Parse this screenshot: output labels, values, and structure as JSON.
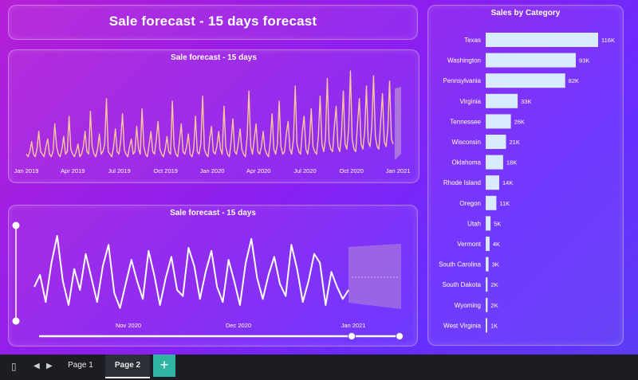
{
  "dashboard_title": "Sale forecast - 15 days forecast",
  "colors": {
    "line1": "#f8c79a",
    "line2": "#ffffff",
    "bar": "#d9ecff",
    "forecast_band": "#b78bd6"
  },
  "footer": {
    "tabs": [
      "Page 1",
      "Page 2"
    ],
    "active_tab": "Page 2",
    "add_label": "+",
    "icons": [
      "phone-layout-icon",
      "prev-page-icon",
      "next-page-icon"
    ]
  },
  "chart_data": [
    {
      "type": "line",
      "title": "Sale forecast - 15 days",
      "x_tick_labels": [
        "Jan 2019",
        "Apr 2019",
        "Jul 2019",
        "Oct 2019",
        "Jan 2020",
        "Apr 2020",
        "Jul 2020",
        "Oct 2020",
        "Jan 2021"
      ],
      "series": [
        {
          "values": [
            3,
            2,
            4,
            8,
            3,
            2,
            5,
            12,
            4,
            3,
            2,
            6,
            9,
            3,
            2,
            4,
            15,
            6,
            3,
            2,
            5,
            10,
            3,
            4,
            18,
            5,
            3,
            2,
            4,
            7,
            2,
            3,
            6,
            12,
            4,
            3,
            20,
            6,
            3,
            2,
            5,
            11,
            3,
            4,
            7,
            25,
            4,
            3,
            2,
            6,
            13,
            4,
            3,
            8,
            19,
            5,
            3,
            2,
            6,
            9,
            3,
            4,
            14,
            5,
            3,
            21,
            6,
            3,
            2,
            7,
            12,
            4,
            3,
            9,
            16,
            5,
            3,
            2,
            5,
            10,
            4,
            3,
            24,
            6,
            3,
            2,
            8,
            15,
            4,
            3,
            6,
            11,
            3,
            2,
            5,
            18,
            4,
            3,
            7,
            26,
            5,
            3,
            2,
            9,
            14,
            4,
            3,
            6,
            12,
            5,
            3,
            22,
            6,
            3,
            2,
            8,
            17,
            4,
            3,
            7,
            13,
            5,
            3,
            2,
            10,
            28,
            6,
            3,
            9,
            15,
            4,
            3,
            6,
            12,
            5,
            3,
            2,
            8,
            19,
            5,
            3,
            7,
            24,
            6,
            3,
            4,
            11,
            16,
            5,
            3,
            9,
            30,
            7,
            4,
            3,
            12,
            18,
            5,
            3,
            8,
            21,
            6,
            4,
            3,
            10,
            26,
            7,
            4,
            9,
            33,
            8,
            5,
            4,
            14,
            22,
            6,
            4,
            11,
            28,
            7,
            5,
            13,
            36,
            9,
            5,
            4,
            15,
            25,
            7,
            5,
            12,
            30,
            8,
            6,
            14,
            34,
            10,
            6,
            5,
            16,
            27,
            8,
            6,
            13,
            32,
            9,
            7
          ]
        }
      ],
      "forecast_band": true
    },
    {
      "type": "line",
      "title": "Sale forecast - 15 days",
      "x_tick_labels": [
        "Nov 2020",
        "Dec 2020",
        "Jan 2021"
      ],
      "series": [
        {
          "values": [
            10,
            14,
            5,
            18,
            27,
            12,
            4,
            16,
            9,
            21,
            13,
            5,
            17,
            24,
            8,
            3,
            11,
            19,
            12,
            6,
            22,
            14,
            4,
            13,
            20,
            9,
            7,
            23,
            17,
            6,
            15,
            22,
            10,
            5,
            19,
            12,
            4,
            18,
            26,
            13,
            6,
            14,
            20,
            11,
            7,
            24,
            16,
            5,
            12,
            21,
            18,
            4,
            15,
            10,
            6,
            9
          ]
        }
      ],
      "forecast_band": true
    },
    {
      "type": "bar",
      "orientation": "horizontal",
      "title": "Sales by Category",
      "categories": [
        "Texas",
        "Washington",
        "Pennsylvania",
        "Virginia",
        "Tennessee",
        "Wisconsin",
        "Oklahoma",
        "Rhode Island",
        "Oregon",
        "Utah",
        "Vermont",
        "South Carolina",
        "South Dakota",
        "Wyoming",
        "West Virginia"
      ],
      "values": [
        116,
        93,
        82,
        33,
        26,
        21,
        18,
        14,
        11,
        5,
        4,
        3,
        2,
        2,
        1
      ],
      "value_labels": [
        "116K",
        "93K",
        "82K",
        "33K",
        "26K",
        "21K",
        "18K",
        "14K",
        "11K",
        "5K",
        "4K",
        "3K",
        "2K",
        "2K",
        "1K"
      ],
      "unit": "K"
    }
  ]
}
